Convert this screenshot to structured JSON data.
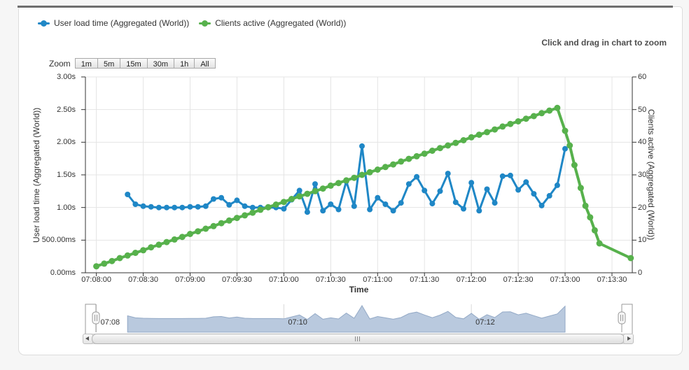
{
  "page": {
    "drag_hint": "Click and drag in chart to zoom"
  },
  "legend": {
    "items": [
      {
        "label": "User load time (Aggregated (World))",
        "color": "#1f87c6"
      },
      {
        "label": "Clients active (Aggregated (World))",
        "color": "#57b14c"
      }
    ]
  },
  "zoom": {
    "label": "Zoom",
    "buttons": [
      "1m",
      "5m",
      "15m",
      "30m",
      "1h",
      "All"
    ]
  },
  "chart_data": {
    "type": "line",
    "xlabel": "Time",
    "x_ticks": [
      "07:08:00",
      "07:08:30",
      "07:09:00",
      "07:09:30",
      "07:10:00",
      "07:10:30",
      "07:11:00",
      "07:11:30",
      "07:12:00",
      "07:12:30",
      "07:13:00",
      "07:13:30"
    ],
    "x_tick_seconds": [
      0,
      30,
      60,
      90,
      120,
      150,
      180,
      210,
      240,
      270,
      300,
      330
    ],
    "x_range_seconds": [
      -7,
      343
    ],
    "grid": true,
    "legend_position": "top-left",
    "left_axis": {
      "title": "User load time (Aggregated (World))",
      "tick_labels": [
        "0.00ms",
        "500.00ms",
        "1.00s",
        "1.50s",
        "2.00s",
        "2.50s",
        "3.00s"
      ],
      "tick_values": [
        0,
        0.5,
        1,
        1.5,
        2,
        2.5,
        3
      ],
      "range": [
        0,
        3
      ]
    },
    "right_axis": {
      "title": "Clients active (Aggregated (World))",
      "tick_labels": [
        "0",
        "10",
        "20",
        "30",
        "40",
        "50",
        "60"
      ],
      "tick_values": [
        0,
        10,
        20,
        30,
        40,
        50,
        60
      ],
      "range": [
        0,
        60
      ]
    },
    "series": [
      {
        "name": "User load time (Aggregated (World))",
        "axis": "left",
        "color": "#1f87c6",
        "line_width": 3,
        "marker_radius": 4,
        "units": "seconds",
        "points": [
          [
            20,
            1.2
          ],
          [
            25,
            1.05
          ],
          [
            30,
            1.02
          ],
          [
            35,
            1.01
          ],
          [
            40,
            1.0
          ],
          [
            45,
            1.0
          ],
          [
            50,
            1.0
          ],
          [
            55,
            1.0
          ],
          [
            60,
            1.01
          ],
          [
            65,
            1.01
          ],
          [
            70,
            1.02
          ],
          [
            75,
            1.13
          ],
          [
            80,
            1.15
          ],
          [
            85,
            1.04
          ],
          [
            90,
            1.11
          ],
          [
            95,
            1.02
          ],
          [
            100,
            1.0
          ],
          [
            105,
            1.0
          ],
          [
            110,
            1.0
          ],
          [
            115,
            1.0
          ],
          [
            120,
            0.98
          ],
          [
            125,
            1.12
          ],
          [
            130,
            1.26
          ],
          [
            135,
            0.93
          ],
          [
            140,
            1.36
          ],
          [
            145,
            0.95
          ],
          [
            150,
            1.05
          ],
          [
            155,
            0.97
          ],
          [
            160,
            1.4
          ],
          [
            165,
            1.02
          ],
          [
            170,
            1.94
          ],
          [
            175,
            0.97
          ],
          [
            180,
            1.15
          ],
          [
            185,
            1.05
          ],
          [
            190,
            0.95
          ],
          [
            195,
            1.07
          ],
          [
            200,
            1.36
          ],
          [
            205,
            1.47
          ],
          [
            210,
            1.26
          ],
          [
            215,
            1.06
          ],
          [
            220,
            1.25
          ],
          [
            225,
            1.52
          ],
          [
            230,
            1.08
          ],
          [
            235,
            0.98
          ],
          [
            240,
            1.38
          ],
          [
            245,
            0.95
          ],
          [
            250,
            1.28
          ],
          [
            255,
            1.07
          ],
          [
            260,
            1.48
          ],
          [
            265,
            1.49
          ],
          [
            270,
            1.27
          ],
          [
            275,
            1.39
          ],
          [
            280,
            1.21
          ],
          [
            285,
            1.03
          ],
          [
            290,
            1.18
          ],
          [
            295,
            1.34
          ],
          [
            300,
            1.9
          ]
        ]
      },
      {
        "name": "Clients active (Aggregated (World))",
        "axis": "right",
        "color": "#57b14c",
        "line_width": 4,
        "marker_radius": 4.5,
        "units": "clients",
        "points": [
          [
            0,
            2.0
          ],
          [
            5,
            2.8
          ],
          [
            10,
            3.6
          ],
          [
            15,
            4.5
          ],
          [
            20,
            5.3
          ],
          [
            25,
            6.1
          ],
          [
            30,
            6.9
          ],
          [
            35,
            7.8
          ],
          [
            40,
            8.6
          ],
          [
            45,
            9.4
          ],
          [
            50,
            10.2
          ],
          [
            55,
            11.0
          ],
          [
            60,
            11.9
          ],
          [
            65,
            12.7
          ],
          [
            70,
            13.5
          ],
          [
            75,
            14.3
          ],
          [
            80,
            15.2
          ],
          [
            85,
            16.0
          ],
          [
            90,
            16.8
          ],
          [
            95,
            17.6
          ],
          [
            100,
            18.4
          ],
          [
            105,
            19.3
          ],
          [
            110,
            20.1
          ],
          [
            115,
            20.9
          ],
          [
            120,
            21.7
          ],
          [
            125,
            22.6
          ],
          [
            130,
            23.4
          ],
          [
            135,
            24.2
          ],
          [
            140,
            25.0
          ],
          [
            145,
            25.8
          ],
          [
            150,
            26.7
          ],
          [
            155,
            27.5
          ],
          [
            160,
            28.3
          ],
          [
            165,
            29.1
          ],
          [
            170,
            30.0
          ],
          [
            175,
            30.8
          ],
          [
            180,
            31.6
          ],
          [
            185,
            32.4
          ],
          [
            190,
            33.2
          ],
          [
            195,
            34.1
          ],
          [
            200,
            34.9
          ],
          [
            205,
            35.7
          ],
          [
            210,
            36.5
          ],
          [
            215,
            37.4
          ],
          [
            220,
            38.2
          ],
          [
            225,
            39.0
          ],
          [
            230,
            39.8
          ],
          [
            235,
            40.6
          ],
          [
            240,
            41.5
          ],
          [
            245,
            42.3
          ],
          [
            250,
            43.1
          ],
          [
            255,
            43.9
          ],
          [
            260,
            44.8
          ],
          [
            265,
            45.6
          ],
          [
            270,
            46.4
          ],
          [
            275,
            47.2
          ],
          [
            280,
            48.0
          ],
          [
            285,
            48.9
          ],
          [
            290,
            49.7
          ],
          [
            295,
            50.5
          ],
          [
            300,
            43.5
          ],
          [
            303,
            39.0
          ],
          [
            306,
            33.0
          ],
          [
            310,
            26.0
          ],
          [
            313,
            20.5
          ],
          [
            316,
            17.0
          ],
          [
            319,
            13.0
          ],
          [
            322,
            9.0
          ],
          [
            342,
            4.5
          ]
        ]
      }
    ]
  },
  "navigator": {
    "tick_labels": [
      "07:08",
      "07:10",
      "07:12"
    ],
    "tick_seconds": [
      0,
      120,
      240
    ],
    "area_color": "#b9c9de",
    "area_line_color": "#93a9c6"
  },
  "colors": {
    "gridline": "#e4e4e4",
    "axis_line": "#333333",
    "top_bar": "#6f6f6f",
    "panel_border": "#dcdcdc"
  }
}
